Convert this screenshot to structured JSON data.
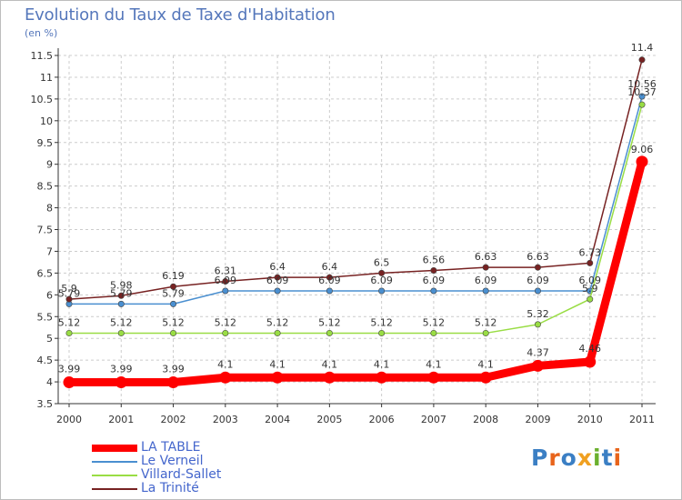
{
  "header": {
    "title": "Evolution du Taux de Taxe d'Habitation",
    "subtitle": "(en %)"
  },
  "colors": {
    "title": "#5577bb",
    "grid": "#cccccc",
    "axis": "#333333",
    "legend_text": "#4466cc"
  },
  "logo": {
    "text": "Proxiti",
    "letter_colors": [
      "#3b7fc4",
      "#e8641b",
      "#3b7fc4",
      "#f0a020",
      "#6bb02e",
      "#3b7fc4",
      "#e8641b"
    ]
  },
  "chart_data": {
    "type": "line",
    "title": "Evolution du Taux de Taxe d'Habitation",
    "ylabel": "(en %)",
    "xlabel": "",
    "x": [
      "2000",
      "2001",
      "2002",
      "2003",
      "2004",
      "2005",
      "2006",
      "2007",
      "2008",
      "2009",
      "2010",
      "2011"
    ],
    "ylim": [
      3.5,
      11.5
    ],
    "yticks": [
      "3.5",
      "4",
      "4.5",
      "5",
      "5.5",
      "6",
      "6.5",
      "7",
      "7.5",
      "8",
      "8.5",
      "9",
      "9.5",
      "10",
      "10.5",
      "11",
      "11.5"
    ],
    "grid": true,
    "legend_position": "bottom-left",
    "series": [
      {
        "name": "LA TABLE",
        "color": "#ff0000",
        "emphasis": true,
        "values": [
          3.99,
          3.99,
          3.99,
          4.1,
          4.1,
          4.1,
          4.1,
          4.1,
          4.1,
          4.37,
          4.46,
          9.06
        ],
        "labels": [
          "3.99",
          "3.99",
          "3.99",
          "4.1",
          "4.1",
          "4.1",
          "4.1",
          "4.1",
          "4.1",
          "4.37",
          "4.46",
          "9.06"
        ]
      },
      {
        "name": "Le Verneil",
        "color": "#4a8fd0",
        "emphasis": false,
        "values": [
          5.79,
          5.79,
          5.79,
          6.09,
          6.09,
          6.09,
          6.09,
          6.09,
          6.09,
          6.09,
          6.09,
          10.56
        ],
        "labels": [
          "5.79",
          "5.79",
          "5.79",
          "6.09",
          "6.09",
          "6.09",
          "6.09",
          "6.09",
          "6.09",
          "6.09",
          "6.09",
          "10.56"
        ]
      },
      {
        "name": "Villard-Sallet",
        "color": "#99dd44",
        "emphasis": false,
        "values": [
          5.12,
          5.12,
          5.12,
          5.12,
          5.12,
          5.12,
          5.12,
          5.12,
          5.12,
          5.32,
          5.9,
          10.37
        ],
        "labels": [
          "5.12",
          "5.12",
          "5.12",
          "5.12",
          "5.12",
          "5.12",
          "5.12",
          "5.12",
          "5.12",
          "5.32",
          "5.9",
          "10.37"
        ]
      },
      {
        "name": "La Trinité",
        "color": "#772222",
        "emphasis": false,
        "values": [
          5.9,
          5.98,
          6.19,
          6.31,
          6.4,
          6.4,
          6.5,
          6.56,
          6.63,
          6.63,
          6.73,
          11.4
        ],
        "labels": [
          "5.9",
          "5.98",
          "6.19",
          "6.31",
          "6.4",
          "6.4",
          "6.5",
          "6.56",
          "6.63",
          "6.63",
          "6.73",
          "11.4"
        ]
      }
    ]
  }
}
